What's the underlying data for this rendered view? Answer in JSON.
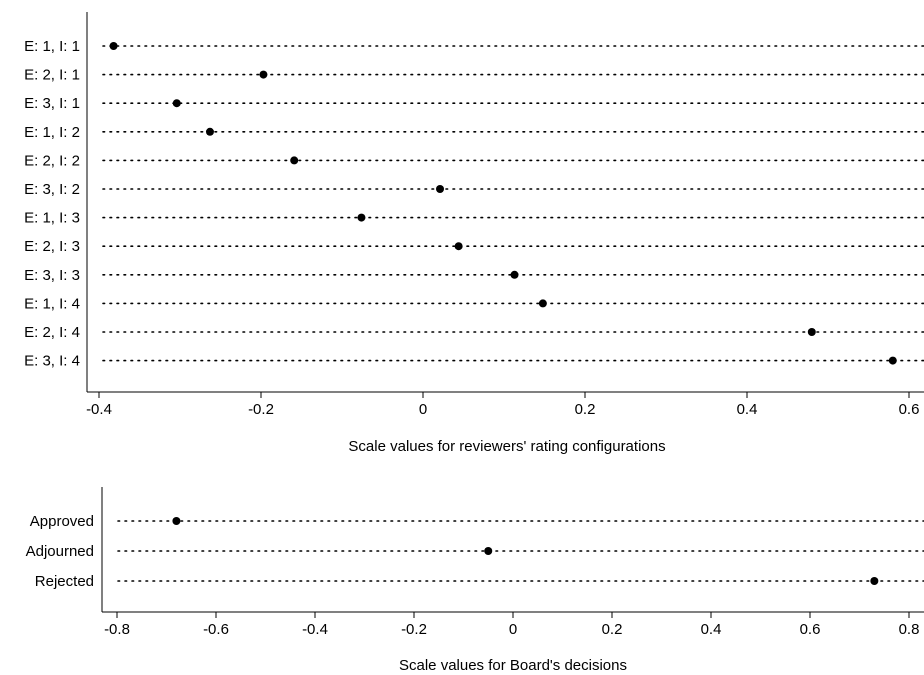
{
  "chart_data": [
    {
      "type": "scatter",
      "style": "dot-plot",
      "title": "",
      "xlabel": "Scale values for reviewers' rating configurations",
      "ylabel": "",
      "xlim": [
        -0.42,
        0.62
      ],
      "xticks": [
        -0.4,
        -0.2,
        0,
        0.2,
        0.4,
        0.6
      ],
      "xtick_labels": [
        "-0.4",
        "-0.2",
        "0",
        "0.2",
        "0.4",
        "0.6"
      ],
      "grid": false,
      "categories": [
        "E: 1, I: 1",
        "E: 2, I: 1",
        "E: 3, I: 1",
        "E: 1, I: 2",
        "E: 2, I: 2",
        "E: 3, I: 2",
        "E: 1, I: 3",
        "E: 2, I: 3",
        "E: 3, I: 3",
        "E: 1, I: 4",
        "E: 2, I: 4",
        "E: 3, I: 4"
      ],
      "values": [
        -0.382,
        -0.197,
        -0.304,
        -0.263,
        -0.159,
        0.021,
        -0.076,
        0.044,
        0.113,
        0.148,
        0.48,
        0.58
      ]
    },
    {
      "type": "scatter",
      "style": "dot-plot",
      "title": "",
      "xlabel": "Scale values for Board's decisions",
      "ylabel": "",
      "xlim": [
        -0.84,
        0.84
      ],
      "xticks": [
        -0.8,
        -0.6,
        -0.4,
        -0.2,
        0,
        0.2,
        0.4,
        0.6,
        0.8
      ],
      "xtick_labels": [
        "-0.8",
        "-0.6",
        "-0.4",
        "-0.2",
        "0",
        "0.2",
        "0.4",
        "0.6",
        "0.8"
      ],
      "grid": false,
      "categories": [
        "Approved",
        "Adjourned",
        "Rejected"
      ],
      "values": [
        -0.68,
        -0.05,
        0.73
      ]
    }
  ]
}
